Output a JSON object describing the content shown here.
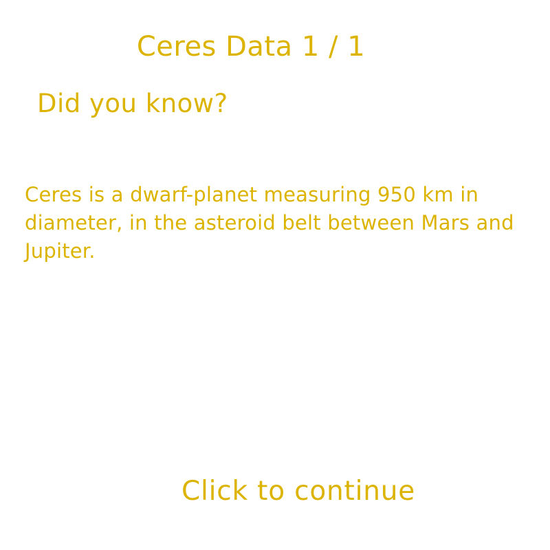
{
  "screen": {
    "title": "Ceres Data 1 / 1",
    "subtitle": "Did you know?",
    "fact": "Ceres is a dwarf-planet measuring 950 km in diameter, in the asteroid belt between Mars and Jupiter.",
    "continue_label": "Click to continue"
  },
  "colors": {
    "text": "#dcb400",
    "background": "#ffffff"
  }
}
